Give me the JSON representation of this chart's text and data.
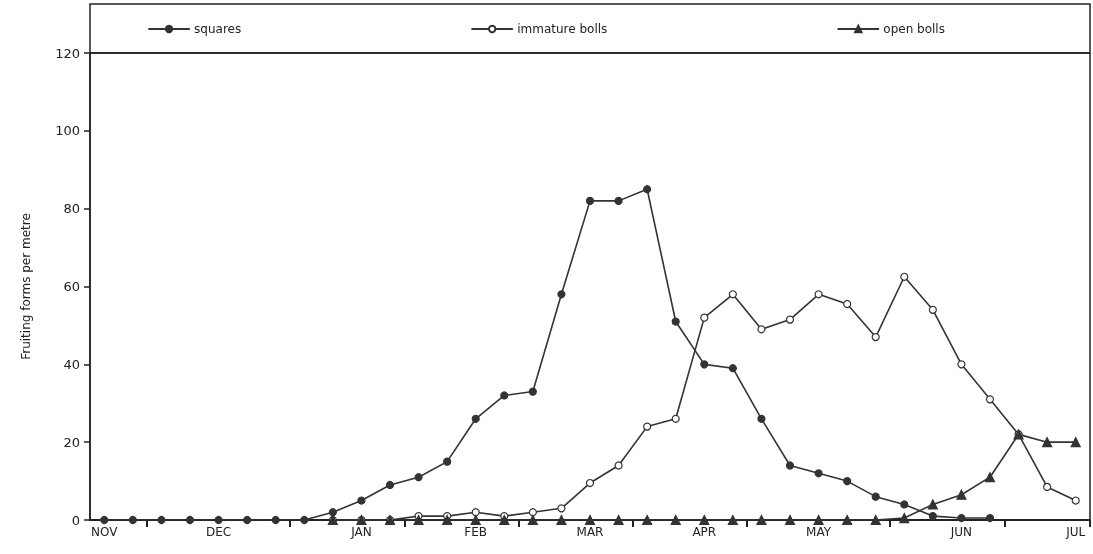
{
  "chart_data": {
    "type": "line",
    "ylabel": "Fruiting forms per metre",
    "legend": "top",
    "line_style": "solid",
    "categories": [
      "NOV",
      null,
      null,
      null,
      "DEC",
      null,
      null,
      null,
      null,
      "JAN",
      null,
      null,
      null,
      "FEB",
      null,
      null,
      null,
      "MAR",
      null,
      null,
      null,
      "APR",
      null,
      null,
      null,
      "MAY",
      null,
      null,
      null,
      null,
      "JUN",
      null,
      null,
      null,
      "JUL"
    ],
    "ylim": [
      0,
      120
    ],
    "yticks": [
      0,
      20,
      40,
      60,
      80,
      100,
      120
    ],
    "series": [
      {
        "name": "squares",
        "color": "#333333",
        "marker": "circle",
        "values": [
          0,
          0,
          0,
          0,
          0,
          0,
          0,
          0,
          2,
          5,
          9,
          11,
          15,
          26,
          32,
          33,
          58,
          82,
          82,
          85,
          51,
          40,
          39,
          26,
          14,
          12,
          10,
          6,
          4,
          1,
          0.5,
          0.5,
          null,
          null,
          null
        ]
      },
      {
        "name": "immature bolls",
        "color": "#333333",
        "marker": "open circle",
        "values": [
          null,
          null,
          null,
          null,
          null,
          null,
          null,
          null,
          0,
          0,
          0,
          1,
          1,
          2,
          1,
          2,
          3,
          9.5,
          14,
          24,
          26,
          52,
          58,
          49,
          51.5,
          58,
          55.5,
          47,
          62.5,
          54,
          40,
          31,
          22,
          8.5,
          5
        ]
      },
      {
        "name": "open bolls",
        "color": "#333333",
        "marker": "triangle",
        "values": [
          null,
          null,
          null,
          null,
          null,
          null,
          null,
          null,
          0,
          0,
          0,
          0,
          0,
          0,
          0,
          0,
          0,
          0,
          0,
          0,
          0,
          0,
          0,
          0,
          0,
          0,
          0,
          0,
          0.5,
          4,
          6.5,
          11,
          22,
          20,
          20
        ]
      }
    ]
  }
}
